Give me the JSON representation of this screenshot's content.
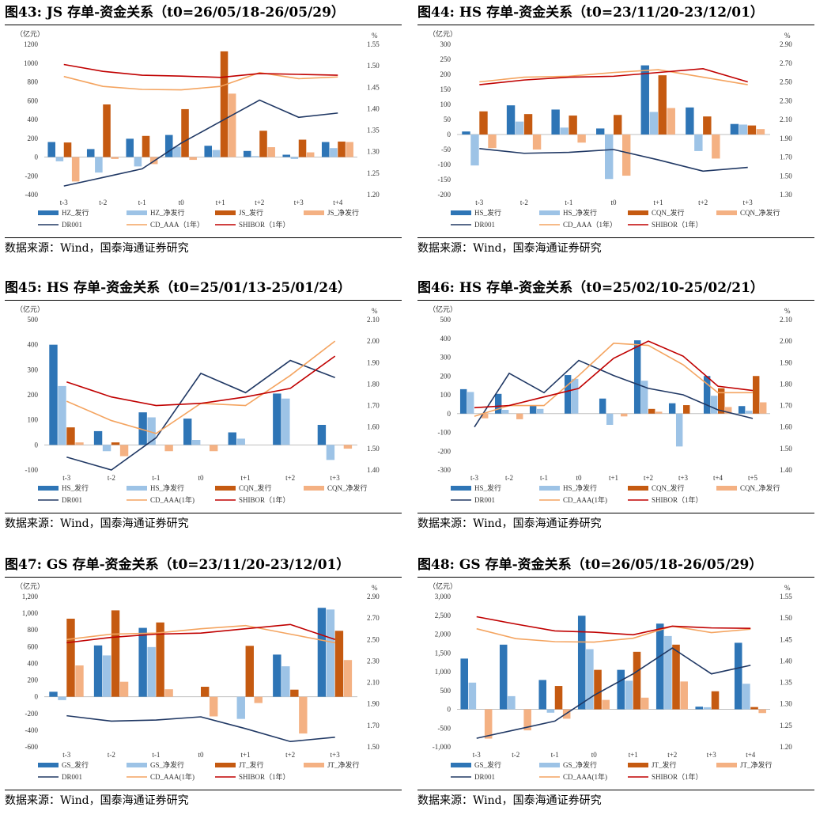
{
  "source_label": "数据来源：Wind，国泰海通证券研究",
  "axis_units": {
    "left": "（亿元）",
    "right": "%"
  },
  "chart_data": [
    {
      "id": "fig43",
      "type": "bar+line",
      "title": "图43:  JS 存单-资金关系（t0=26/05/18-26/05/29）",
      "categories": [
        "t-3",
        "t-2",
        "t-1",
        "t0",
        "t+1",
        "t+2",
        "t+3",
        "t+4"
      ],
      "left_axis": {
        "min": -400,
        "max": 1200,
        "step": 200,
        "ticks": [
          "-400",
          "-200",
          "0",
          "200",
          "400",
          "600",
          "800",
          "1000",
          "1200"
        ]
      },
      "right_axis": {
        "min": 1.2,
        "max": 1.55,
        "step": 0.05,
        "ticks": [
          "1.20",
          "1.25",
          "1.30",
          "1.35",
          "1.40",
          "1.45",
          "1.50",
          "1.55"
        ]
      },
      "bar_series": [
        {
          "name": "HZ_发行",
          "color": "#2e75b6",
          "values": [
            160,
            85,
            195,
            235,
            120,
            65,
            25,
            160
          ]
        },
        {
          "name": "HZ_净发行",
          "color": "#9dc3e6",
          "values": [
            -45,
            -165,
            -100,
            110,
            75,
            10,
            -20,
            95
          ]
        },
        {
          "name": "JS_发行",
          "color": "#c55a11",
          "values": [
            155,
            560,
            225,
            510,
            1125,
            280,
            185,
            165
          ]
        },
        {
          "name": "JS_净发行",
          "color": "#f4b183",
          "values": [
            -260,
            -20,
            -75,
            -30,
            675,
            105,
            50,
            160
          ]
        }
      ],
      "line_series": [
        {
          "name": "DR001",
          "color": "#203864",
          "values": [
            1.22,
            1.24,
            1.26,
            1.32,
            1.37,
            1.42,
            1.38,
            1.39
          ]
        },
        {
          "name": "CD_AAA（1年）",
          "color": "#f4a460",
          "values": [
            1.475,
            1.452,
            1.445,
            1.444,
            1.452,
            1.484,
            1.47,
            1.474
          ]
        },
        {
          "name": "SHIBOR（1年）",
          "color": "#c00000",
          "values": [
            1.503,
            1.487,
            1.478,
            1.476,
            1.473,
            1.482,
            1.48,
            1.478
          ]
        }
      ]
    },
    {
      "id": "fig44",
      "type": "bar+line",
      "title": "图44:  HS 存单-资金关系（t0=23/11/20-23/12/01）",
      "categories": [
        "t-3",
        "t-2",
        "t-1",
        "t0",
        "t+1",
        "t+2",
        "t+3"
      ],
      "left_axis": {
        "min": -200,
        "max": 300,
        "step": 50,
        "ticks": [
          "-200",
          "-150",
          "-100",
          "-50",
          "0",
          "50",
          "100",
          "150",
          "200",
          "250",
          "300"
        ]
      },
      "right_axis": {
        "min": 1.3,
        "max": 2.9,
        "step": 0.2,
        "ticks": [
          "1.30",
          "1.50",
          "1.70",
          "1.90",
          "2.10",
          "2.30",
          "2.50",
          "2.70",
          "2.90"
        ]
      },
      "bar_series": [
        {
          "name": "HS_发行",
          "color": "#2e75b6",
          "values": [
            10,
            97,
            83,
            20,
            230,
            90,
            35
          ]
        },
        {
          "name": "HS_净发行",
          "color": "#9dc3e6",
          "values": [
            -103,
            43,
            23,
            -148,
            75,
            -55,
            33
          ]
        },
        {
          "name": "CQN_发行",
          "color": "#c55a11",
          "values": [
            77,
            68,
            63,
            65,
            197,
            60,
            30
          ]
        },
        {
          "name": "CQN_净发行",
          "color": "#f4b183",
          "values": [
            -45,
            -50,
            -27,
            -137,
            88,
            -80,
            18
          ]
        }
      ],
      "line_series": [
        {
          "name": "DR001",
          "color": "#203864",
          "values": [
            1.79,
            1.74,
            1.75,
            1.78,
            1.67,
            1.55,
            1.59
          ]
        },
        {
          "name": "CD_AAA（1年）",
          "color": "#f4a460",
          "values": [
            2.5,
            2.55,
            2.56,
            2.6,
            2.63,
            2.55,
            2.47
          ]
        },
        {
          "name": "SHIBOR（1年）",
          "color": "#c00000",
          "values": [
            2.47,
            2.52,
            2.55,
            2.56,
            2.6,
            2.64,
            2.5
          ]
        }
      ]
    },
    {
      "id": "fig45",
      "type": "bar+line",
      "title": "图45:  HS 存单-资金关系（t0=25/01/13-25/01/24）",
      "categories": [
        "t-3",
        "t-2",
        "t-1",
        "t0",
        "t+1",
        "t+2",
        "t+3"
      ],
      "left_axis": {
        "min": -100,
        "max": 500,
        "step": 100,
        "ticks": [
          "-100",
          "0",
          "100",
          "200",
          "300",
          "400",
          "500"
        ]
      },
      "right_axis": {
        "min": 1.4,
        "max": 2.1,
        "step": 0.1,
        "ticks": [
          "1.40",
          "1.50",
          "1.60",
          "1.70",
          "1.80",
          "1.90",
          "2.00",
          "2.10"
        ]
      },
      "bar_series": [
        {
          "name": "HS_发行",
          "color": "#2e75b6",
          "values": [
            400,
            55,
            130,
            105,
            50,
            205,
            80
          ]
        },
        {
          "name": "HS_净发行",
          "color": "#9dc3e6",
          "values": [
            235,
            -25,
            110,
            20,
            25,
            185,
            -60
          ]
        },
        {
          "name": "CQN_发行",
          "color": "#c55a11",
          "values": [
            70,
            10,
            0,
            0,
            0,
            0,
            0
          ]
        },
        {
          "name": "CQN_净发行",
          "color": "#f4b183",
          "values": [
            10,
            -45,
            -25,
            -25,
            0,
            0,
            -15
          ]
        }
      ],
      "line_series": [
        {
          "name": "DR001",
          "color": "#203864",
          "values": [
            1.46,
            1.4,
            1.55,
            1.85,
            1.76,
            1.91,
            1.83
          ]
        },
        {
          "name": "CD_AAA(1年)",
          "color": "#f4a460",
          "values": [
            1.72,
            1.63,
            1.57,
            1.71,
            1.7,
            1.84,
            2.0
          ]
        },
        {
          "name": "SHIBOR（1年）",
          "color": "#c00000",
          "values": [
            1.81,
            1.74,
            1.7,
            1.71,
            1.74,
            1.78,
            1.93
          ]
        }
      ]
    },
    {
      "id": "fig46",
      "type": "bar+line",
      "title": "图46:  HS 存单-资金关系（t0=25/02/10-25/02/21）",
      "categories": [
        "t-3",
        "t-2",
        "t-1",
        "t0",
        "t+1",
        "t+2",
        "t+3",
        "t+4",
        "t+5"
      ],
      "left_axis": {
        "min": -300,
        "max": 500,
        "step": 100,
        "ticks": [
          "-300",
          "-200",
          "-100",
          "0",
          "100",
          "200",
          "300",
          "400",
          "500"
        ]
      },
      "right_axis": {
        "min": 1.4,
        "max": 2.1,
        "step": 0.1,
        "ticks": [
          "1.40",
          "1.50",
          "1.60",
          "1.70",
          "1.80",
          "1.90",
          "2.00",
          "2.10"
        ]
      },
      "bar_series": [
        {
          "name": "HS_发行",
          "color": "#2e75b6",
          "values": [
            130,
            105,
            45,
            205,
            80,
            390,
            55,
            200,
            40
          ]
        },
        {
          "name": "HS_净发行",
          "color": "#9dc3e6",
          "values": [
            115,
            20,
            25,
            185,
            -60,
            175,
            -175,
            95,
            15
          ]
        },
        {
          "name": "CQN_发行",
          "color": "#c55a11",
          "values": [
            0,
            0,
            0,
            0,
            0,
            25,
            45,
            135,
            200
          ]
        },
        {
          "name": "CQN_净发行",
          "color": "#f4b183",
          "values": [
            -25,
            -30,
            0,
            0,
            -15,
            10,
            0,
            35,
            60
          ]
        }
      ],
      "line_series": [
        {
          "name": "DR001",
          "color": "#203864",
          "values": [
            1.6,
            1.85,
            1.76,
            1.91,
            1.84,
            1.78,
            1.75,
            1.68,
            1.64
          ]
        },
        {
          "name": "CD_AAA(1年)",
          "color": "#f4a460",
          "values": [
            1.65,
            1.7,
            1.7,
            1.84,
            1.99,
            1.98,
            1.89,
            1.76,
            1.76
          ]
        },
        {
          "name": "SHIBOR（1年）",
          "color": "#c00000",
          "values": [
            1.69,
            1.7,
            1.74,
            1.78,
            1.92,
            2.0,
            1.93,
            1.79,
            1.77
          ]
        }
      ]
    },
    {
      "id": "fig47",
      "type": "bar+line",
      "title": "图47:  GS 存单-资金关系（t0=23/11/20-23/12/01）",
      "categories": [
        "t-3",
        "t-2",
        "t-1",
        "t0",
        "t+1",
        "t+2",
        "t+3"
      ],
      "left_axis": {
        "min": -600,
        "max": 1200,
        "step": 200,
        "ticks": [
          "-600",
          "-400",
          "-200",
          "0",
          "200",
          "400",
          "600",
          "800",
          "1,000",
          "1,200"
        ]
      },
      "right_axis": {
        "min": 1.5,
        "max": 2.9,
        "step": 0.2,
        "ticks": [
          "1.50",
          "1.70",
          "1.90",
          "2.10",
          "2.30",
          "2.50",
          "2.70",
          "2.90"
        ]
      },
      "bar_series": [
        {
          "name": "GS_发行",
          "color": "#2e75b6",
          "values": [
            60,
            615,
            825,
            0,
            0,
            505,
            1065
          ]
        },
        {
          "name": "GS_净发行",
          "color": "#9dc3e6",
          "values": [
            -40,
            495,
            595,
            0,
            -265,
            365,
            1045
          ]
        },
        {
          "name": "JT_发行",
          "color": "#c55a11",
          "values": [
            935,
            1035,
            890,
            120,
            610,
            85,
            790
          ]
        },
        {
          "name": "JT_净发行",
          "color": "#f4b183",
          "values": [
            375,
            180,
            90,
            -235,
            -75,
            -440,
            440
          ]
        }
      ],
      "line_series": [
        {
          "name": "DR001",
          "color": "#203864",
          "values": [
            1.79,
            1.74,
            1.75,
            1.78,
            1.67,
            1.55,
            1.59
          ]
        },
        {
          "name": "CD_AAA(1年)",
          "color": "#f4a460",
          "values": [
            2.5,
            2.55,
            2.56,
            2.6,
            2.63,
            2.55,
            2.47
          ]
        },
        {
          "name": "SHIBOR（1年）",
          "color": "#c00000",
          "values": [
            2.47,
            2.52,
            2.55,
            2.56,
            2.6,
            2.64,
            2.5
          ]
        }
      ]
    },
    {
      "id": "fig48",
      "type": "bar+line",
      "title": "图48:  GS 存单-资金关系（t0=26/05/18-26/05/29）",
      "categories": [
        "t-3",
        "t-2",
        "t-1",
        "t0",
        "t+1",
        "t+2",
        "t+3",
        "t+4"
      ],
      "left_axis": {
        "min": -1000,
        "max": 3000,
        "step": 500,
        "ticks": [
          "-1,000",
          "-500",
          "0",
          "500",
          "1,000",
          "1,500",
          "2,000",
          "2,500",
          "3,000"
        ]
      },
      "right_axis": {
        "min": 1.2,
        "max": 1.55,
        "step": 0.05,
        "ticks": [
          "1.20",
          "1.25",
          "1.30",
          "1.35",
          "1.40",
          "1.45",
          "1.50",
          "1.55"
        ]
      },
      "bar_series": [
        {
          "name": "GS_发行",
          "color": "#2e75b6",
          "values": [
            1350,
            1720,
            780,
            2490,
            1050,
            2280,
            70,
            1770
          ]
        },
        {
          "name": "GS_净发行",
          "color": "#9dc3e6",
          "values": [
            710,
            350,
            -90,
            1600,
            760,
            1950,
            55,
            680
          ]
        },
        {
          "name": "JT_发行",
          "color": "#c55a11",
          "values": [
            0,
            0,
            620,
            1050,
            1530,
            1720,
            480,
            60
          ]
        },
        {
          "name": "JT_净发行",
          "color": "#f4b183",
          "values": [
            -780,
            -560,
            -250,
            250,
            310,
            740,
            0,
            -100
          ]
        }
      ],
      "line_series": [
        {
          "name": "DR001",
          "color": "#203864",
          "values": [
            1.22,
            1.24,
            1.26,
            1.32,
            1.37,
            1.43,
            1.37,
            1.39
          ]
        },
        {
          "name": "CD_AAA(1年)",
          "color": "#f4a460",
          "values": [
            1.475,
            1.452,
            1.445,
            1.444,
            1.453,
            1.481,
            1.466,
            1.474
          ]
        },
        {
          "name": "SHIBOR（1年）",
          "color": "#c00000",
          "values": [
            1.503,
            1.486,
            1.47,
            1.467,
            1.461,
            1.481,
            1.477,
            1.476
          ]
        }
      ]
    }
  ]
}
